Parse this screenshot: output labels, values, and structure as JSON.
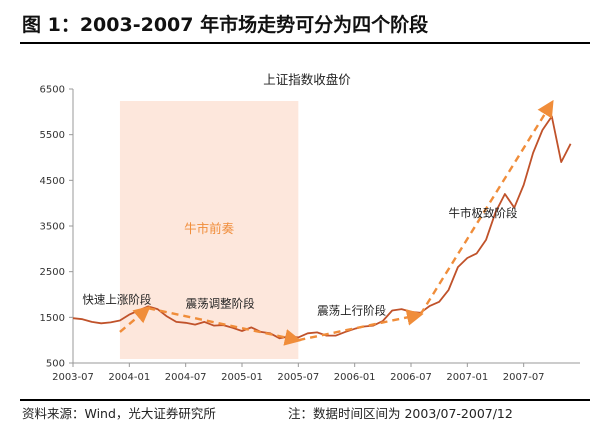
{
  "figure_title": "图 1：2003-2007 年市场走势可分为四个阶段",
  "footer": {
    "source": "资料来源：Wind，光大证券研究所",
    "note": "注：数据时间区间为 2003/07-2007/12"
  },
  "colors": {
    "line": "#c0522a",
    "trend": "#f08d3a",
    "shade": "#fde7dc",
    "shade_label": "#f08d3a"
  },
  "chart_data": {
    "type": "line",
    "title": "上证指数收盘价",
    "xlabel": "",
    "ylabel": "",
    "ylim": [
      500,
      6500
    ],
    "yticks": [
      500,
      1500,
      2500,
      3500,
      4500,
      5500,
      6500
    ],
    "xlim": [
      "2003-07",
      "2008-01"
    ],
    "xticks": [
      "2003-07",
      "2004-01",
      "2004-07",
      "2005-01",
      "2005-07",
      "2006-01",
      "2006-07",
      "2007-01",
      "2007-07"
    ],
    "grid": false,
    "legend": "none",
    "series": [
      {
        "x": [
          "2003-07",
          "2003-08",
          "2003-09",
          "2003-10",
          "2003-11",
          "2003-12",
          "2004-01",
          "2004-02",
          "2004-03",
          "2004-04",
          "2004-05",
          "2004-06",
          "2004-07",
          "2004-08",
          "2004-09",
          "2004-10",
          "2004-11",
          "2004-12",
          "2005-01",
          "2005-02",
          "2005-03",
          "2005-04",
          "2005-05",
          "2005-06",
          "2005-07",
          "2005-08",
          "2005-09",
          "2005-10",
          "2005-11",
          "2005-12",
          "2006-01",
          "2006-02",
          "2006-03",
          "2006-04",
          "2006-05",
          "2006-06",
          "2006-07",
          "2006-08",
          "2006-09",
          "2006-10",
          "2006-11",
          "2006-12",
          "2007-01",
          "2007-02",
          "2007-03",
          "2007-04",
          "2007-05",
          "2007-06",
          "2007-07",
          "2007-08",
          "2007-09",
          "2007-10",
          "2007-11",
          "2007-12"
        ],
        "values": [
          1480,
          1460,
          1400,
          1370,
          1390,
          1430,
          1560,
          1650,
          1740,
          1680,
          1520,
          1400,
          1380,
          1340,
          1400,
          1320,
          1330,
          1270,
          1200,
          1280,
          1180,
          1150,
          1040,
          1080,
          1060,
          1150,
          1170,
          1100,
          1100,
          1180,
          1250,
          1300,
          1320,
          1420,
          1650,
          1680,
          1620,
          1600,
          1750,
          1840,
          2100,
          2600,
          2800,
          2900,
          3200,
          3800,
          4200,
          3900,
          4400,
          5100,
          5600,
          5900,
          4900,
          5300
        ]
      }
    ],
    "stage_band": {
      "x_start": "2003-12",
      "x_end": "2005-07",
      "label": "牛市前奏"
    },
    "trend_arrows": [
      {
        "x": [
          "2003-12",
          "2004-03"
        ],
        "values": [
          1180,
          1700
        ]
      },
      {
        "x": [
          "2004-03",
          "2005-07"
        ],
        "values": [
          1700,
          1000
        ]
      },
      {
        "x": [
          "2005-07",
          "2006-08"
        ],
        "values": [
          1000,
          1560
        ]
      },
      {
        "x": [
          "2006-08",
          "2007-10"
        ],
        "values": [
          1560,
          6200
        ]
      }
    ],
    "annotations": [
      {
        "text": "快速上涨阶段",
        "x": "2003-08",
        "y": 1800
      },
      {
        "text": "震荡调整阶段",
        "x": "2004-07",
        "y": 1720
      },
      {
        "text": "震荡上行阶段",
        "x": "2005-09",
        "y": 1560
      },
      {
        "text": "牛市极致阶段",
        "x": "2006-11",
        "y": 3700
      }
    ]
  }
}
